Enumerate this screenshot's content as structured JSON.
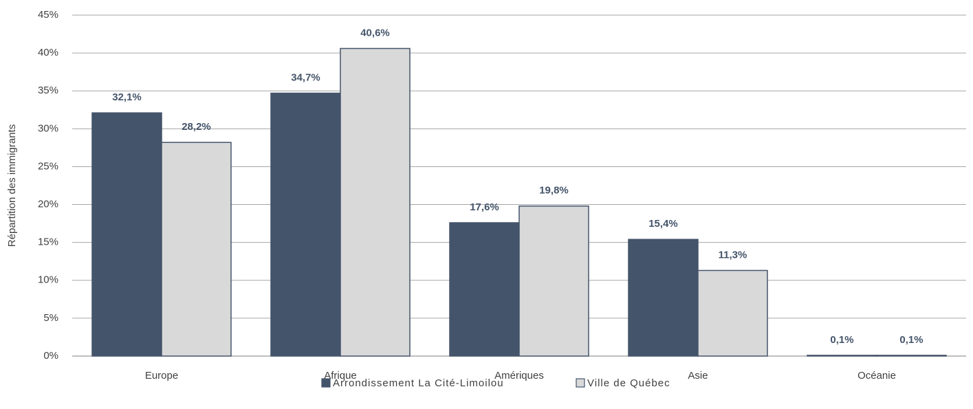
{
  "chart_data": {
    "type": "bar",
    "y_label": "Répartition des immigrants",
    "categories": [
      "Europe",
      "Afrique",
      "Amériques",
      "Asie",
      "Océanie"
    ],
    "series": [
      {
        "name": "Arrondissement La Cité-Limoilou",
        "color": "#44546a",
        "values": [
          32.1,
          34.7,
          17.6,
          15.4,
          0.1
        ],
        "value_labels": [
          "32,1%",
          "34,7%",
          "17,6%",
          "15,4%",
          "0,1%"
        ]
      },
      {
        "name": "Ville de Québec",
        "color": "#d9d9d9",
        "values": [
          28.2,
          40.6,
          19.8,
          11.3,
          0.1
        ],
        "value_labels": [
          "28,2%",
          "40,6%",
          "19,8%",
          "11,3%",
          "0,1%"
        ]
      }
    ],
    "ylim": [
      0,
      45
    ],
    "yticks": [
      {
        "value": 0,
        "label": "0%"
      },
      {
        "value": 5,
        "label": "5%"
      },
      {
        "value": 10,
        "label": "10%"
      },
      {
        "value": 15,
        "label": "15%"
      },
      {
        "value": 20,
        "label": "20%"
      },
      {
        "value": 25,
        "label": "25%"
      },
      {
        "value": 30,
        "label": "30%"
      },
      {
        "value": 35,
        "label": "35%"
      },
      {
        "value": 40,
        "label": "40%"
      },
      {
        "value": 45,
        "label": "45%"
      }
    ],
    "grid": true,
    "legend": "bottom"
  }
}
